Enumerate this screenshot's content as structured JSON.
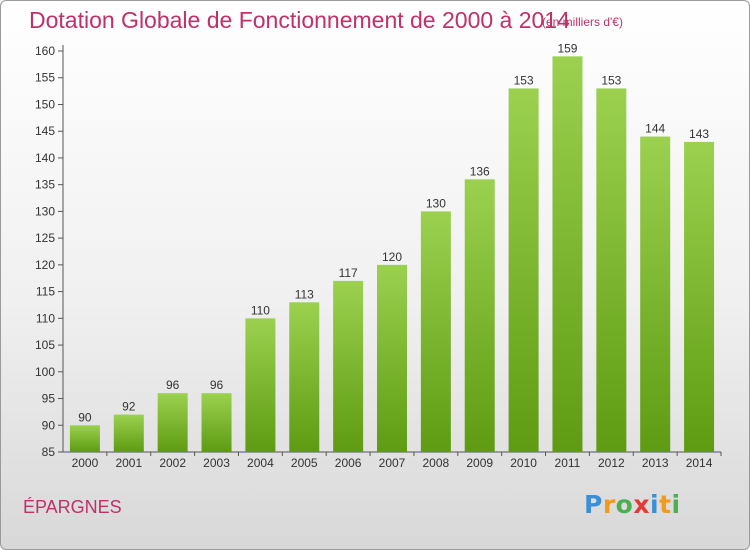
{
  "title": "Dotation Globale de Fonctionnement de 2000 à 2014",
  "subtitle": "(en milliers d'€)",
  "commune": "ÉPARGNES",
  "logo": {
    "text": "Proxiti",
    "letters": [
      {
        "ch": "P",
        "color": "#3a8fd8"
      },
      {
        "ch": "r",
        "color": "#f39a1a"
      },
      {
        "ch": "o",
        "color": "#4caf50"
      },
      {
        "ch": "x",
        "color": "#e53935"
      },
      {
        "ch": "i",
        "color": "#3a8fd8"
      },
      {
        "ch": "t",
        "color": "#f39a1a"
      },
      {
        "ch": "i",
        "color": "#4caf50"
      }
    ]
  },
  "colors": {
    "accent": "#c0306a",
    "bar_top": "#9bd14f",
    "bar_bottom": "#5e9b12",
    "axis": "#555555"
  },
  "chart_data": {
    "type": "bar",
    "categories": [
      "2000",
      "2001",
      "2002",
      "2003",
      "2004",
      "2005",
      "2006",
      "2007",
      "2008",
      "2009",
      "2010",
      "2011",
      "2012",
      "2013",
      "2014"
    ],
    "values": [
      90,
      92,
      96,
      96,
      110,
      113,
      117,
      120,
      130,
      136,
      153,
      159,
      153,
      144,
      143
    ],
    "ylim": [
      85,
      160
    ],
    "yticks": [
      85,
      90,
      95,
      100,
      105,
      110,
      115,
      120,
      125,
      130,
      135,
      140,
      145,
      150,
      155,
      160
    ],
    "grid": false,
    "data_labels": true
  }
}
